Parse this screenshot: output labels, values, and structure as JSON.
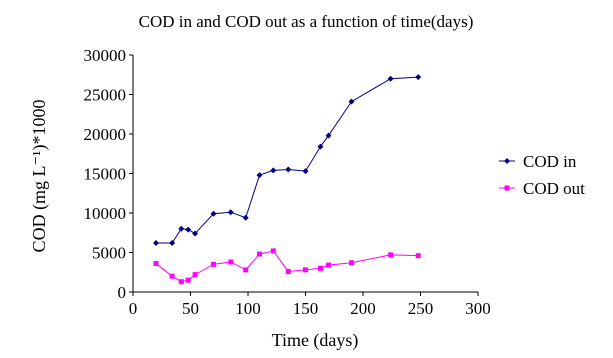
{
  "chart_data": {
    "type": "line",
    "title": "COD in and COD out as a function of time(days)",
    "xlabel": "Time (days)",
    "ylabel": "COD (mg L⁻¹)*1000",
    "xlim": [
      0,
      300
    ],
    "ylim": [
      0,
      30000
    ],
    "x_ticks": [
      "0",
      "50",
      "100",
      "150",
      "200",
      "250",
      "300"
    ],
    "y_ticks": [
      "0",
      "5000",
      "10000",
      "15000",
      "20000",
      "25000",
      "30000"
    ],
    "grid": false,
    "legend_position": "right",
    "series": [
      {
        "name": "COD in",
        "color": "#000080",
        "marker": "diamond",
        "x": [
          20,
          34,
          42,
          48,
          54,
          70,
          85,
          98,
          110,
          122,
          135,
          150,
          163,
          170,
          190,
          224,
          248
        ],
        "y": [
          6200,
          6200,
          8000,
          7900,
          7400,
          9900,
          10100,
          9400,
          14800,
          15400,
          15500,
          15300,
          18400,
          19800,
          24100,
          27000,
          27200
        ]
      },
      {
        "name": "COD out",
        "color": "#ff00ff",
        "marker": "square",
        "x": [
          20,
          34,
          42,
          48,
          54,
          70,
          85,
          98,
          110,
          122,
          135,
          150,
          163,
          170,
          190,
          224,
          248
        ],
        "y": [
          3600,
          2000,
          1300,
          1500,
          2200,
          3500,
          3800,
          2800,
          4800,
          5200,
          2600,
          2800,
          3000,
          3400,
          3700,
          4700,
          4600
        ]
      }
    ]
  }
}
